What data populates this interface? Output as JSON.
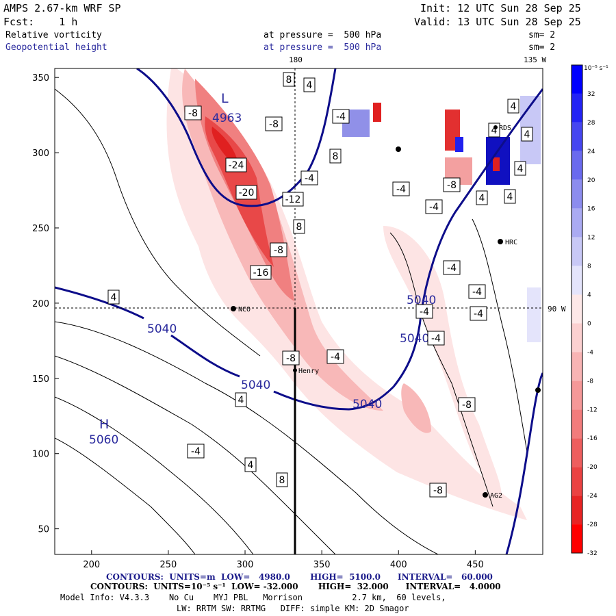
{
  "header": {
    "model_title": "AMPS 2.67-km WRF SP",
    "init_time": "Init: 12 UTC Sun 28 Sep 25",
    "forecast": "Fcst:    1 h",
    "valid_time": "Valid: 13 UTC Sun 28 Sep 25",
    "field1_name": "Relative vorticity",
    "field1_level": "at pressure =  500 hPa",
    "field1_smooth": "sm= 2",
    "field2_name": "Geopotential height",
    "field2_level": "at pressure =  500 hPa",
    "field2_smooth": "sm= 2"
  },
  "map_labels": {
    "lon_180": "180",
    "lon_135w": "135 W",
    "lat_90w": "90 W",
    "high_symbol": "H",
    "high_value": "5060",
    "minimum_symbol": "L",
    "minimum_value": "4963",
    "stations": [
      "NCO",
      "Henry",
      "HRC",
      "AG2",
      "RDS"
    ]
  },
  "colorbar": {
    "unit_label": "10⁻⁵ s⁻¹",
    "ticks": [
      32,
      28,
      24,
      20,
      16,
      12,
      8,
      4,
      0,
      -4,
      -8,
      -12,
      -16,
      -20,
      -24,
      -28,
      -32
    ],
    "colors": [
      "#0000ff",
      "#2323f5",
      "#4646f0",
      "#6a6aee",
      "#8c8cee",
      "#aaaaf2",
      "#c8c8f6",
      "#e4e4fb",
      "#fde8e8",
      "#fbd0d0",
      "#f8b4b4",
      "#f59898",
      "#f27c7c",
      "#ee5e5e",
      "#eb4242",
      "#e82424",
      "#ff0000"
    ]
  },
  "footer": {
    "line1_prefix": "CONTOURS:  UNITS=m  LOW=   4980.0       HIGH=  5100.0      INTERVAL=   60.000",
    "line2": "CONTOURS:  UNITS=10⁻⁵ s⁻¹  LOW= -32.000       HIGH=  32.000      INTERVAL=   4.0000",
    "line3": "Model Info: V4.3.3    No Cu    MYJ PBL   Morrison          2.7 km,  60 levels,",
    "line4": "LW: RRTM SW: RRTMG   DIFF: simple KM: 2D Smagor"
  },
  "chart_data": {
    "type": "heatmap",
    "title": "AMPS 2.67-km WRF SP - Relative vorticity and Geopotential height at 500 hPa",
    "x_ticks": [
      200,
      250,
      300,
      350,
      400,
      450
    ],
    "y_ticks": [
      50,
      100,
      150,
      200,
      250,
      300,
      350
    ],
    "xlim": [
      176,
      494
    ],
    "ylim": [
      33,
      356
    ],
    "height_contour_labels": [
      "5040",
      "5040",
      "5040",
      "5040",
      "5040"
    ],
    "vorticity_box_labels": [
      "8",
      "4",
      "-8",
      "-8",
      "-24",
      "-20",
      "-12",
      "-4",
      "8",
      "-8",
      "-16",
      "-8",
      "-4",
      "-4",
      "8",
      "-4",
      "-4",
      "-8",
      "-4",
      "-4",
      "-4",
      "4",
      "4",
      "8",
      "4",
      "-4",
      "-4",
      "-4",
      "4",
      "4",
      "4",
      "4",
      "4",
      "-8",
      "-8",
      "4"
    ],
    "cross_section_x": 334,
    "reference_line_x": 334,
    "reference_line_y": 196
  }
}
